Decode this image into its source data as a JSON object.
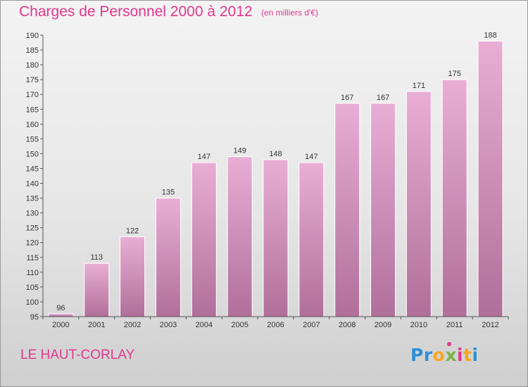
{
  "header": {
    "title": "Charges de Personnel 2000 à 2012",
    "subtitle": "(en milliers d'€)"
  },
  "footer": {
    "place": "LE HAUT-CORLAY",
    "logo": {
      "letters": [
        "P",
        "r",
        "o",
        "x",
        "i",
        "t",
        "i"
      ],
      "colors": [
        "#2e8fd8",
        "#2e8fd8",
        "#f5a623",
        "#7cb342",
        "#e0388c",
        "#f5a623",
        "#2e8fd8"
      ]
    }
  },
  "colors": {
    "bar_top": "#e9aed6",
    "bar_bottom": "#b06f9a",
    "text_accent": "#e0388c"
  },
  "chart_data": {
    "type": "bar",
    "categories": [
      "2000",
      "2001",
      "2002",
      "2003",
      "2004",
      "2005",
      "2006",
      "2007",
      "2008",
      "2009",
      "2010",
      "2011",
      "2012"
    ],
    "values": [
      96,
      113,
      122,
      135,
      147,
      149,
      148,
      147,
      167,
      167,
      171,
      175,
      188
    ],
    "ylim": [
      95,
      190
    ],
    "yticks": [
      95,
      100,
      105,
      110,
      115,
      120,
      125,
      130,
      135,
      140,
      145,
      150,
      155,
      160,
      165,
      170,
      175,
      180,
      185,
      190
    ],
    "grid": false
  }
}
